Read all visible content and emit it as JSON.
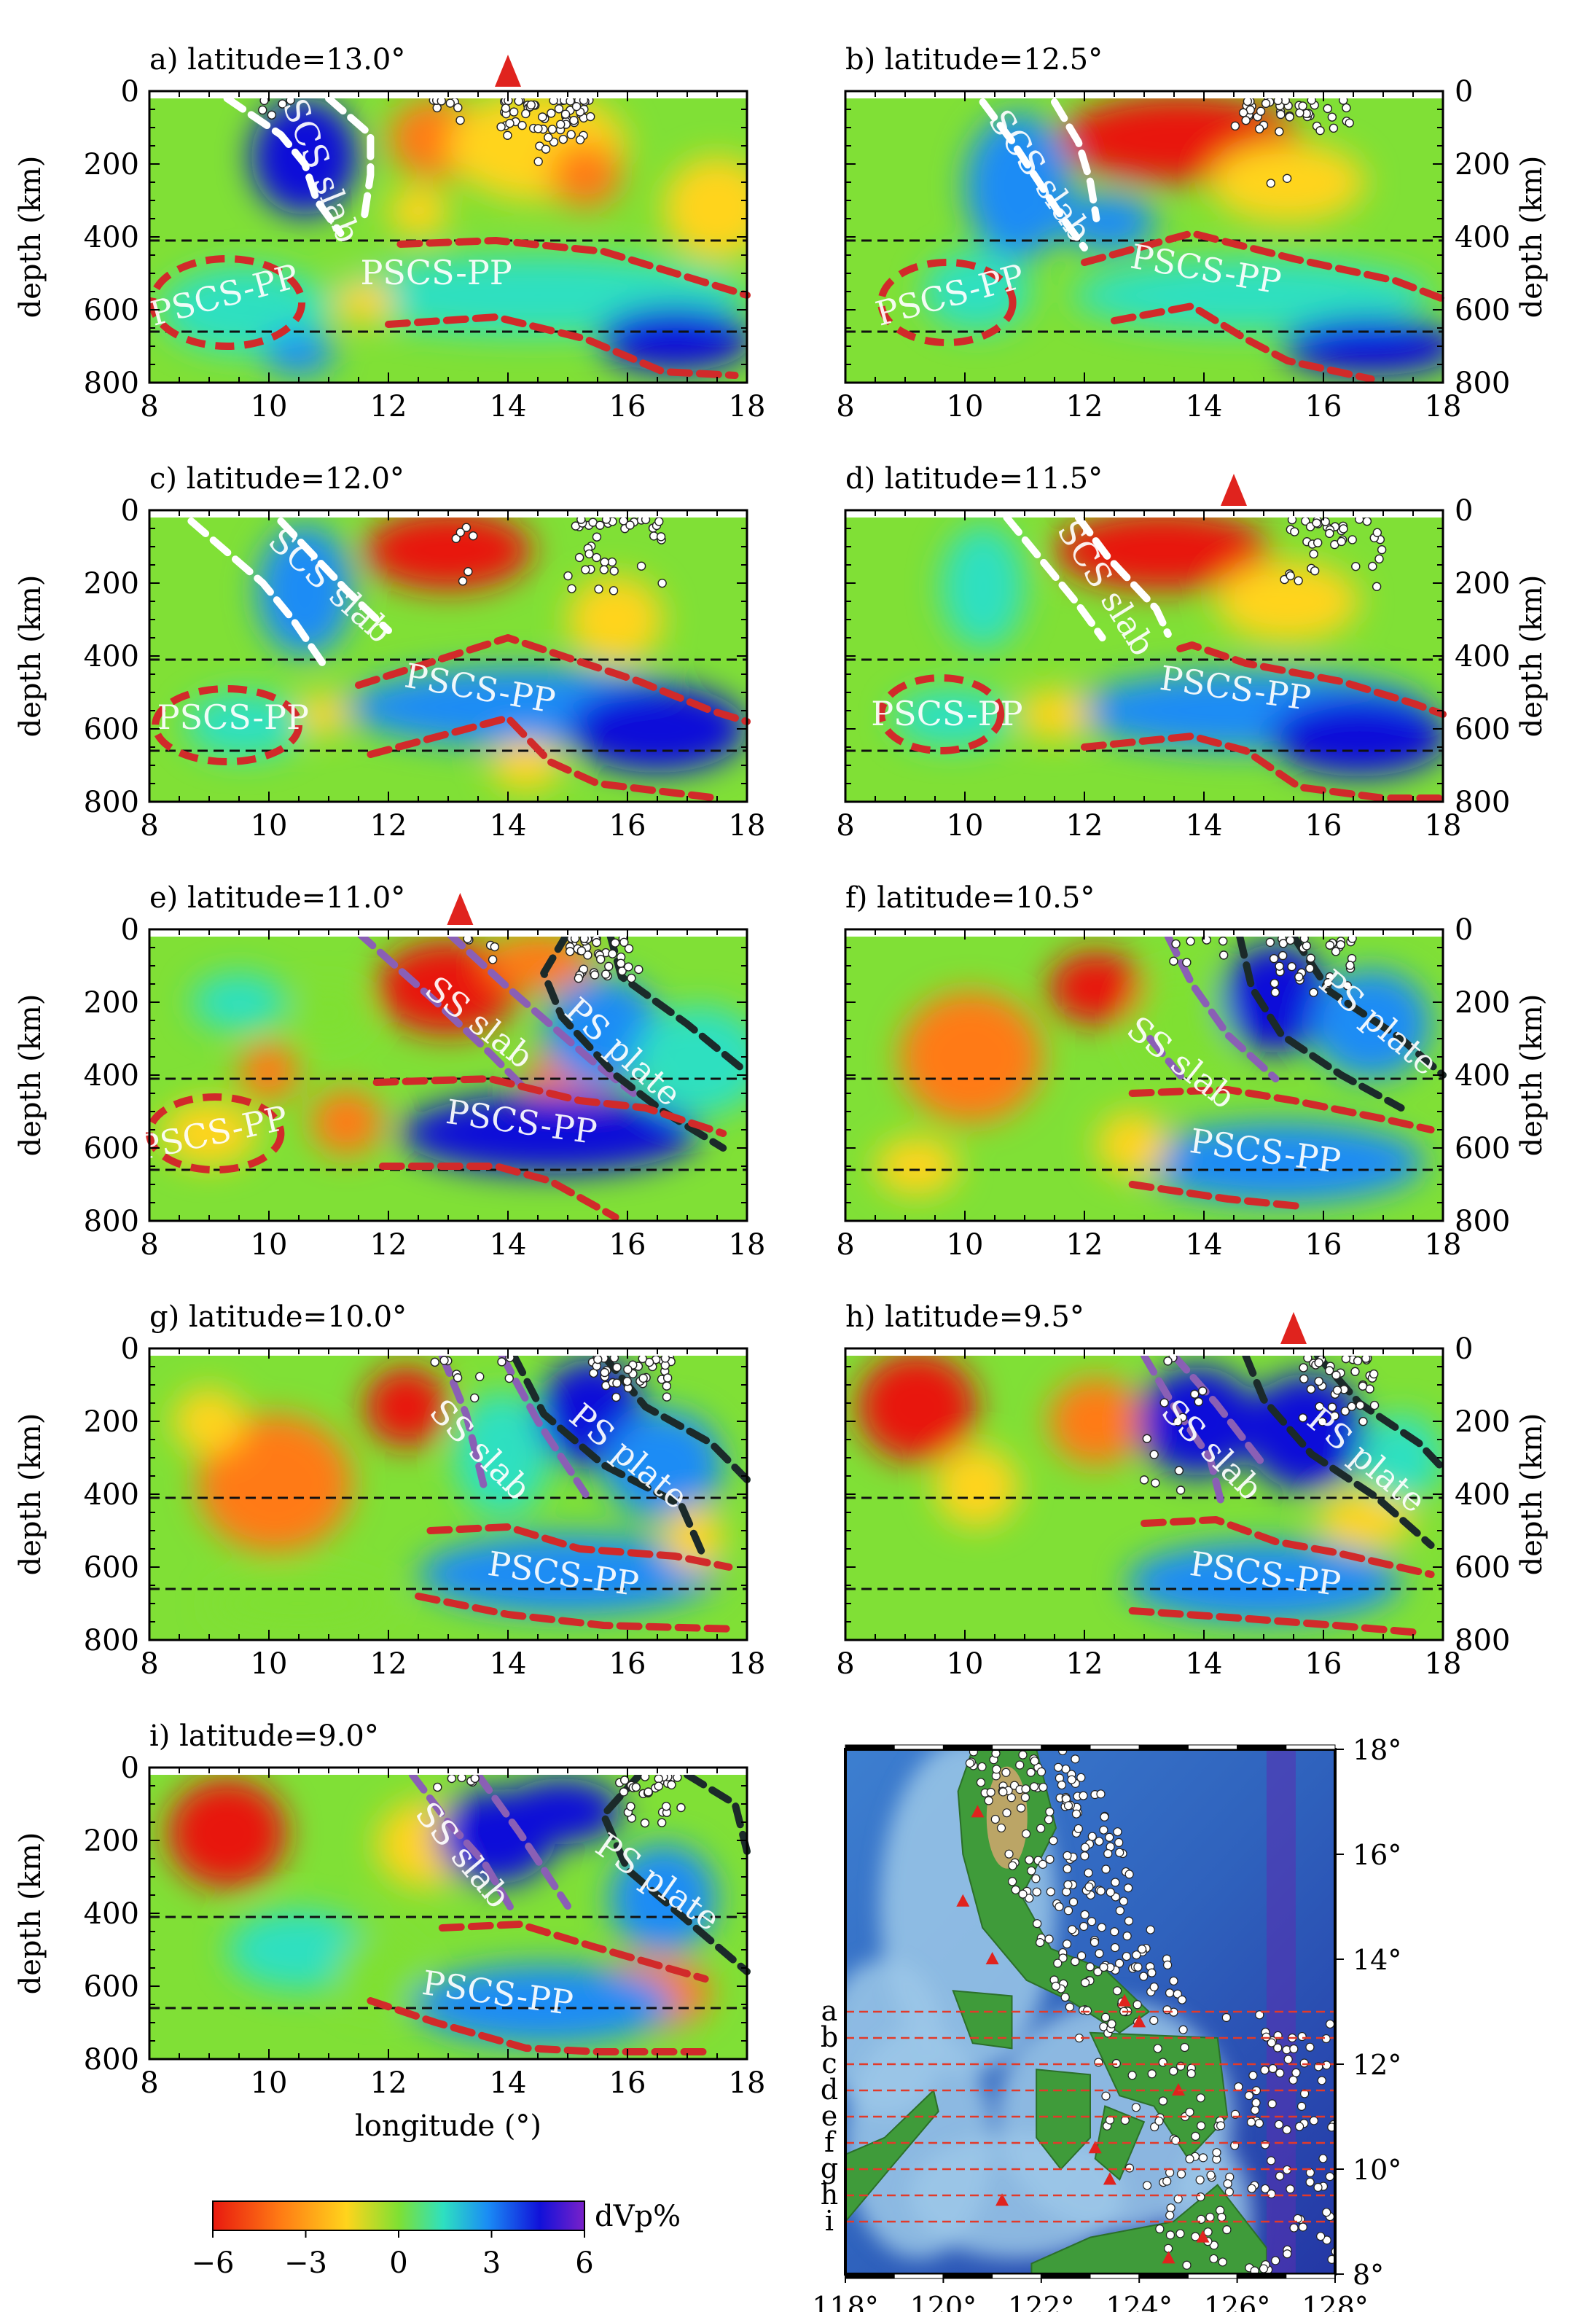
{
  "colors": {
    "vel_scale": [
      "#e8190f",
      "#ff7a14",
      "#ffd41c",
      "#7fe033",
      "#2ee0c0",
      "#1a8cf5",
      "#1111d9",
      "#7a21c9"
    ],
    "slab_outline_SCS": "#ffffff",
    "outline_PSCS_PP": "#d12a2a",
    "outline_SS_slab": "#8a5fb5",
    "outline_PS_plate": "#1b2a2a",
    "volcano": "#e0231e",
    "earthquake": "#ffffff"
  },
  "panels": [
    {
      "id": "a",
      "title": "a) latitude=13.0°",
      "volcano_lon": 14.0,
      "labels": [
        "SCS slab",
        "PSCS-PP",
        "PSCS-PP"
      ]
    },
    {
      "id": "b",
      "title": "b) latitude=12.5°",
      "volcano_lon": null,
      "labels": [
        "SCS slab",
        "PSCS-PP",
        "PSCS-PP"
      ]
    },
    {
      "id": "c",
      "title": "c) latitude=12.0°",
      "volcano_lon": null,
      "labels": [
        "SCS slab",
        "PSCS-PP",
        "PSCS-PP"
      ]
    },
    {
      "id": "d",
      "title": "d) latitude=11.5°",
      "volcano_lon": 14.5,
      "labels": [
        "SCS slab",
        "PSCS-PP",
        "PSCS-PP"
      ]
    },
    {
      "id": "e",
      "title": "e) latitude=11.0°",
      "volcano_lon": 13.2,
      "labels": [
        "SS slab",
        "PS plate",
        "PSCS-PP",
        "PSCS-PP"
      ]
    },
    {
      "id": "f",
      "title": "f) latitude=10.5°",
      "volcano_lon": null,
      "labels": [
        "SS slab",
        "PS plate",
        "PSCS-PP"
      ]
    },
    {
      "id": "g",
      "title": "g) latitude=10.0°",
      "volcano_lon": null,
      "labels": [
        "SS slab",
        "PS plate",
        "PSCS-PP"
      ]
    },
    {
      "id": "h",
      "title": "h) latitude=9.5°",
      "volcano_lon": 15.5,
      "labels": [
        "SS slab",
        "PS plate",
        "PSCS-PP"
      ]
    },
    {
      "id": "i",
      "title": "i) latitude=9.0°",
      "volcano_lon": null,
      "labels": [
        "SS slab",
        "PS plate",
        "PSCS-PP"
      ]
    }
  ],
  "axes": {
    "depth_label": "depth (km)",
    "lon_label": "longitude (°)",
    "x_ticks": [
      "8",
      "10",
      "12",
      "14",
      "16",
      "18"
    ],
    "y_ticks": [
      "0",
      "200",
      "400",
      "600",
      "800"
    ],
    "x_range": [
      8,
      18
    ],
    "y_range": [
      0,
      800
    ],
    "discontinuities_km": [
      410,
      660
    ]
  },
  "colorbar": {
    "label": "dVp%",
    "ticks": [
      "−6",
      "−3",
      "0",
      "3",
      "6"
    ],
    "range": [
      -6,
      6
    ]
  },
  "map": {
    "lon_ticks": [
      "118°",
      "120°",
      "122°",
      "124°",
      "126°",
      "128°"
    ],
    "lat_ticks": [
      "8°",
      "10°",
      "12°",
      "14°",
      "16°",
      "18°"
    ],
    "profile_letters": [
      "a",
      "b",
      "c",
      "d",
      "e",
      "f",
      "g",
      "h",
      "i"
    ],
    "profile_lats": [
      13.0,
      12.5,
      12.0,
      11.5,
      11.0,
      10.5,
      10.0,
      9.5,
      9.0
    ],
    "lon_range": [
      118,
      128
    ],
    "lat_range": [
      8,
      18
    ]
  }
}
